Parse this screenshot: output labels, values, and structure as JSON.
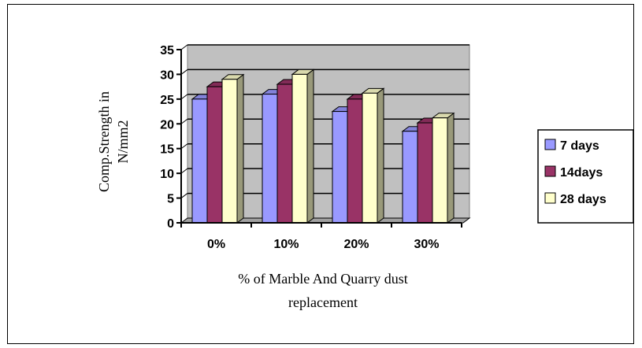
{
  "chart_data": {
    "type": "bar",
    "title": "",
    "categories": [
      "0%",
      "10%",
      "20%",
      "30%"
    ],
    "series": [
      {
        "name": "7 days",
        "values": [
          25,
          26,
          22.5,
          18.5
        ],
        "color": "#9999ff"
      },
      {
        "name": "14days",
        "values": [
          27.5,
          28,
          25,
          20.2
        ],
        "color": "#993366"
      },
      {
        "name": "28 days",
        "values": [
          29,
          30,
          26.2,
          21.2
        ],
        "color": "#ffffcc"
      }
    ],
    "ylabel_lines": [
      "Comp.Strength in",
      "N/mm2"
    ],
    "xlabel_lines": [
      "% of Marble And Quarry dust",
      "replacement"
    ],
    "ylim": [
      0,
      35
    ],
    "yticks": [
      0,
      5,
      10,
      15,
      20,
      25,
      30,
      35
    ],
    "grid": true,
    "three_d": true,
    "plot_background": "#c0c0c0",
    "legend_position": "right"
  }
}
